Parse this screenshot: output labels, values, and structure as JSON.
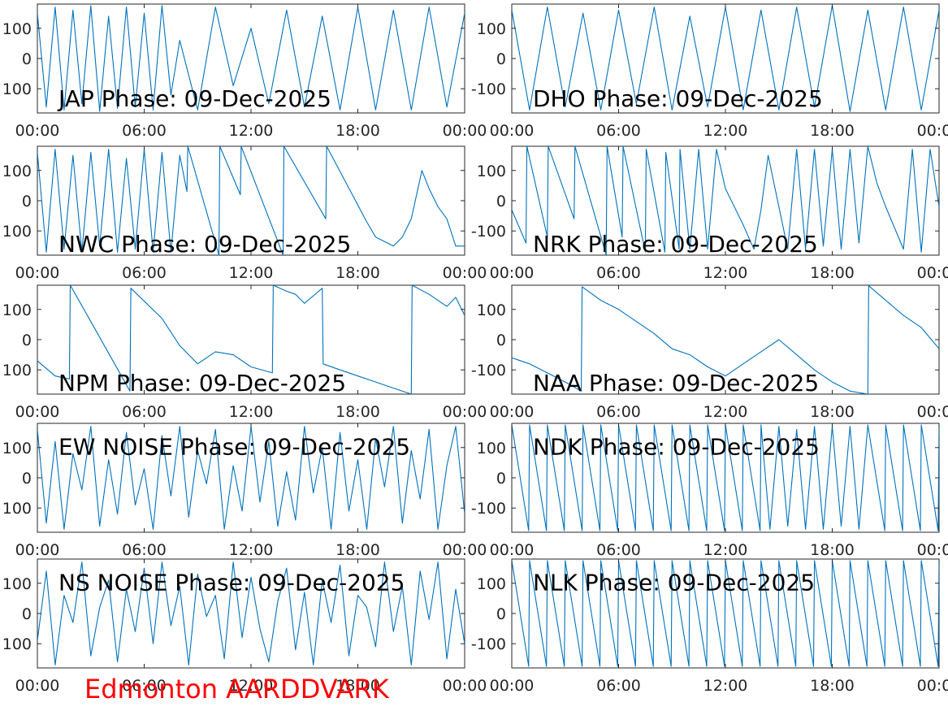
{
  "footer": {
    "label": "Edmonton AARDDVARK"
  },
  "colors": {
    "trace": "#0072BD",
    "axis": "#262626",
    "footer": "#FF0000"
  },
  "chart_data": [
    {
      "type": "line",
      "title": "JAP Phase: 09-Dec-2025",
      "xlabel": "",
      "ylabel": "",
      "xticks": [
        "00:00",
        "06:00",
        "12:00",
        "18:00",
        "00:00"
      ],
      "yticks": [
        "100",
        "0",
        "100"
      ],
      "xlim": [
        0,
        24
      ],
      "ylim": [
        -180,
        180
      ],
      "x": [
        0,
        0.5,
        1,
        1.5,
        2,
        2.5,
        3,
        3.5,
        4,
        4.5,
        5,
        5.5,
        6,
        6.5,
        7,
        7.5,
        8,
        9,
        10,
        11,
        12,
        13,
        14,
        15,
        16,
        17,
        18,
        19,
        20,
        21,
        22,
        23,
        24
      ],
      "y": [
        150,
        -160,
        170,
        -170,
        160,
        -150,
        175,
        -175,
        140,
        -165,
        170,
        -160,
        150,
        -170,
        175,
        -120,
        60,
        -170,
        170,
        -90,
        100,
        -150,
        160,
        -160,
        140,
        -170,
        170,
        -170,
        160,
        -170,
        170,
        -160,
        150
      ]
    },
    {
      "type": "line",
      "title": "DHO Phase: 09-Dec-2025",
      "xlabel": "",
      "ylabel": "",
      "xticks": [
        "00:00",
        "06:00",
        "12:00",
        "18:00",
        "00:00"
      ],
      "yticks": [
        "100",
        "0",
        "-100"
      ],
      "xlim": [
        0,
        24
      ],
      "ylim": [
        -180,
        180
      ],
      "x": [
        0,
        1,
        2,
        3,
        4,
        5,
        6,
        7,
        8,
        9,
        10,
        11,
        12,
        13,
        14,
        15,
        16,
        17,
        18,
        19,
        20,
        21,
        22,
        23,
        24
      ],
      "y": [
        160,
        -170,
        170,
        -160,
        150,
        -170,
        160,
        -150,
        170,
        -170,
        140,
        -160,
        170,
        -170,
        160,
        -170,
        170,
        -160,
        175,
        -175,
        160,
        -170,
        170,
        -170,
        160
      ]
    },
    {
      "type": "line",
      "title": "NWC Phase: 09-Dec-2025",
      "xlabel": "",
      "ylabel": "",
      "xticks": [
        "00:00",
        "06:00",
        "12:00",
        "18:00",
        "00:00"
      ],
      "yticks": [
        "100",
        "0",
        "100"
      ],
      "xlim": [
        0,
        24
      ],
      "ylim": [
        -180,
        180
      ],
      "x": [
        0,
        0.5,
        1,
        1.5,
        2,
        2.5,
        3,
        3.5,
        4,
        4.5,
        5,
        5.5,
        6,
        6.5,
        7,
        7.5,
        8,
        8.4,
        8.45,
        10.2,
        10.25,
        11.4,
        11.45,
        13.8,
        13.85,
        16.2,
        16.25,
        18.5,
        19,
        20,
        20.5,
        21,
        21.6,
        22,
        22.5,
        23,
        23.5,
        24
      ],
      "y": [
        160,
        -170,
        170,
        -160,
        150,
        -170,
        160,
        -150,
        170,
        -170,
        140,
        -160,
        170,
        -170,
        160,
        -170,
        150,
        30,
        180,
        -180,
        180,
        20,
        180,
        -180,
        180,
        -60,
        180,
        -70,
        -120,
        -150,
        -120,
        -60,
        100,
        40,
        -20,
        -60,
        -150,
        -150
      ]
    },
    {
      "type": "line",
      "title": "NRK Phase: 09-Dec-2025",
      "xlabel": "",
      "ylabel": "",
      "xticks": [
        "00:00",
        "06:00",
        "12:00",
        "18:00",
        "00:00"
      ],
      "yticks": [
        "100",
        "0",
        "-100"
      ],
      "xlim": [
        0,
        24
      ],
      "ylim": [
        -180,
        180
      ],
      "x": [
        0,
        0.8,
        0.85,
        2,
        2.05,
        3.5,
        3.55,
        5.3,
        5.35,
        6.2,
        6.25,
        7.5,
        7.55,
        8.6,
        8.65,
        9.4,
        9.45,
        10,
        10.5,
        11,
        11.5,
        12,
        13,
        13.6,
        14,
        14.4,
        15.5,
        16,
        16.5,
        17,
        17.5,
        18,
        18.5,
        19,
        19.5,
        20,
        20.5,
        21,
        22,
        22.5,
        23,
        23.5,
        24
      ],
      "y": [
        -30,
        -140,
        180,
        -120,
        180,
        -60,
        180,
        -180,
        180,
        -120,
        180,
        -170,
        170,
        -170,
        160,
        -160,
        170,
        -160,
        170,
        -160,
        170,
        40,
        -80,
        -160,
        -30,
        150,
        -160,
        170,
        -160,
        170,
        -150,
        170,
        -160,
        170,
        -140,
        180,
        60,
        -20,
        -160,
        170,
        -170,
        170,
        -20
      ]
    },
    {
      "type": "line",
      "title": "NPM Phase: 09-Dec-2025",
      "xlabel": "",
      "ylabel": "",
      "xticks": [
        "00:00",
        "06:00",
        "12:00",
        "18:00",
        "00:00"
      ],
      "yticks": [
        "100",
        "0",
        "100"
      ],
      "xlim": [
        0,
        24
      ],
      "ylim": [
        -180,
        180
      ],
      "x": [
        0,
        1,
        1.8,
        1.85,
        3,
        5.2,
        5.25,
        7,
        8,
        9,
        10,
        11,
        12,
        13.2,
        13.25,
        14,
        14.5,
        15,
        16,
        16.05,
        17,
        18,
        19,
        20,
        21,
        21.05,
        22,
        23,
        23.5,
        24
      ],
      "y": [
        -70,
        -120,
        -130,
        180,
        60,
        -170,
        170,
        70,
        -20,
        -80,
        -40,
        -50,
        -90,
        -110,
        180,
        160,
        150,
        120,
        170,
        -80,
        -100,
        -120,
        -140,
        -160,
        -180,
        180,
        150,
        110,
        140,
        80
      ]
    },
    {
      "type": "line",
      "title": "NAA Phase: 09-Dec-2025",
      "xlabel": "",
      "ylabel": "",
      "xticks": [
        "00:00",
        "06:00",
        "12:00",
        "18:00",
        "00:00"
      ],
      "yticks": [
        "100",
        "0",
        "-100"
      ],
      "xlim": [
        0,
        24
      ],
      "ylim": [
        -180,
        180
      ],
      "x": [
        0,
        1,
        2,
        3,
        3.9,
        3.95,
        5,
        6,
        7,
        8,
        9,
        10,
        11,
        12,
        13,
        14,
        15,
        16,
        17,
        18,
        19,
        20,
        20.05,
        21,
        22,
        23,
        24
      ],
      "y": [
        -60,
        -80,
        -110,
        -140,
        -170,
        175,
        130,
        100,
        60,
        20,
        -30,
        -50,
        -90,
        -120,
        -80,
        -40,
        0,
        -50,
        -100,
        -140,
        -170,
        -180,
        178,
        130,
        80,
        40,
        -30
      ]
    },
    {
      "type": "line",
      "title": "EW NOISE Phase: 09-Dec-2025",
      "xlabel": "",
      "ylabel": "",
      "xticks": [
        "00:00",
        "06:00",
        "12:00",
        "18:00",
        "00:00"
      ],
      "yticks": [
        "100",
        "0",
        "100"
      ],
      "xlim": [
        0,
        24
      ],
      "ylim": [
        -180,
        180
      ],
      "x": [
        0,
        0.5,
        1,
        1.5,
        2,
        2.5,
        3,
        3.5,
        4,
        4.5,
        5,
        5.5,
        6,
        6.5,
        7,
        7.5,
        8,
        8.5,
        9,
        9.5,
        10,
        10.5,
        11,
        11.5,
        12,
        12.5,
        13,
        13.5,
        14,
        14.5,
        15,
        15.5,
        16,
        16.5,
        17,
        17.5,
        18,
        18.5,
        19,
        19.5,
        20,
        20.5,
        21,
        21.5,
        22,
        22.5,
        23,
        23.5,
        24
      ],
      "y": [
        160,
        -150,
        120,
        -170,
        80,
        -40,
        170,
        -160,
        60,
        -120,
        150,
        -90,
        30,
        -170,
        140,
        -60,
        170,
        -130,
        90,
        -20,
        160,
        -170,
        40,
        -110,
        170,
        -80,
        120,
        -160,
        20,
        -140,
        170,
        -50,
        100,
        -170,
        150,
        -110,
        60,
        -170,
        130,
        -30,
        170,
        -150,
        90,
        -70,
        160,
        -170,
        40,
        170,
        -120
      ]
    },
    {
      "type": "line",
      "title": "NDK Phase: 09-Dec-2025",
      "xlabel": "",
      "ylabel": "",
      "xticks": [
        "00:00",
        "06:00",
        "12:00",
        "18:00",
        "00:00"
      ],
      "yticks": [
        "100",
        "0",
        "-100"
      ],
      "xlim": [
        0,
        24
      ],
      "ylim": [
        -180,
        180
      ],
      "x": [
        0,
        0.95,
        1,
        1.95,
        2,
        2.95,
        3,
        3.95,
        4,
        4.95,
        5,
        5.95,
        6,
        6.95,
        7,
        7.95,
        8,
        8.95,
        9,
        9.95,
        10,
        10.95,
        11,
        11.95,
        12,
        12.95,
        13,
        13.95,
        14,
        14.5,
        15,
        15.5,
        16,
        16.5,
        17,
        17.5,
        18,
        18.5,
        19,
        19.5,
        20,
        20.95,
        21,
        21.95,
        22,
        22.95,
        23,
        23.95,
        24
      ],
      "y": [
        175,
        -175,
        175,
        -175,
        175,
        -175,
        175,
        -175,
        175,
        -175,
        175,
        -175,
        175,
        -175,
        175,
        -175,
        175,
        -175,
        175,
        -175,
        175,
        -175,
        175,
        -175,
        175,
        -175,
        175,
        -175,
        175,
        -170,
        170,
        -160,
        160,
        -170,
        170,
        -170,
        170,
        -160,
        170,
        -170,
        175,
        -175,
        175,
        -175,
        175,
        -175,
        175,
        -175,
        175
      ]
    },
    {
      "type": "line",
      "title": "NS NOISE Phase: 09-Dec-2025",
      "xlabel": "",
      "ylabel": "",
      "xticks": [
        "00:00",
        "06:00",
        "12:00",
        "18:00",
        "00:00"
      ],
      "yticks": [
        "100",
        "0",
        "100"
      ],
      "xlim": [
        0,
        24
      ],
      "ylim": [
        -180,
        180
      ],
      "x": [
        0,
        0.5,
        1,
        1.5,
        2,
        2.5,
        3,
        3.5,
        4,
        4.5,
        5,
        5.5,
        6,
        6.5,
        7,
        7.5,
        8,
        8.5,
        9,
        9.5,
        10,
        10.5,
        11,
        11.5,
        12,
        12.5,
        13,
        13.5,
        14,
        14.5,
        15,
        15.5,
        16,
        16.5,
        17,
        17.5,
        18,
        18.5,
        19,
        19.5,
        20,
        20.5,
        21,
        21.5,
        22,
        22.5,
        23,
        23.5,
        24
      ],
      "y": [
        -90,
        140,
        -170,
        60,
        -30,
        170,
        -140,
        20,
        110,
        -160,
        80,
        -60,
        150,
        -100,
        170,
        -40,
        90,
        -170,
        130,
        -10,
        60,
        -150,
        170,
        -80,
        120,
        -50,
        -160,
        40,
        150,
        -120,
        70,
        -170,
        110,
        -30,
        160,
        -140,
        60,
        20,
        -110,
        170,
        -60,
        90,
        -170,
        140,
        -20,
        170,
        -150,
        80,
        -100
      ]
    },
    {
      "type": "line",
      "title": "NLK Phase: 09-Dec-2025",
      "xlabel": "",
      "ylabel": "",
      "xticks": [
        "00:00",
        "06:00",
        "12:00",
        "18:00",
        "00:00"
      ],
      "yticks": [
        "100",
        "0",
        "-100"
      ],
      "xlim": [
        0,
        24
      ],
      "ylim": [
        -180,
        180
      ],
      "x": [
        0,
        0.95,
        1,
        1.95,
        2,
        2.95,
        3,
        3.95,
        4,
        4.95,
        5,
        5.95,
        6,
        6.95,
        7,
        7.95,
        8,
        8.95,
        9,
        9.95,
        10,
        10.95,
        11,
        11.95,
        12,
        12.95,
        13,
        13.95,
        14,
        14.95,
        15,
        15.95,
        16,
        16.95,
        17,
        17.95,
        18,
        18.95,
        19,
        19.95,
        20,
        20.95,
        21,
        21.95,
        22,
        22.95,
        23,
        23.95,
        24
      ],
      "y": [
        175,
        -175,
        175,
        -175,
        175,
        -175,
        175,
        -175,
        175,
        -175,
        175,
        -175,
        175,
        -175,
        175,
        -175,
        175,
        -175,
        175,
        -175,
        175,
        -175,
        175,
        -175,
        175,
        -175,
        175,
        -175,
        175,
        -175,
        175,
        -175,
        175,
        -175,
        175,
        -175,
        175,
        -175,
        175,
        -175,
        175,
        -175,
        175,
        -175,
        175,
        -175,
        175,
        -175,
        175
      ]
    }
  ]
}
